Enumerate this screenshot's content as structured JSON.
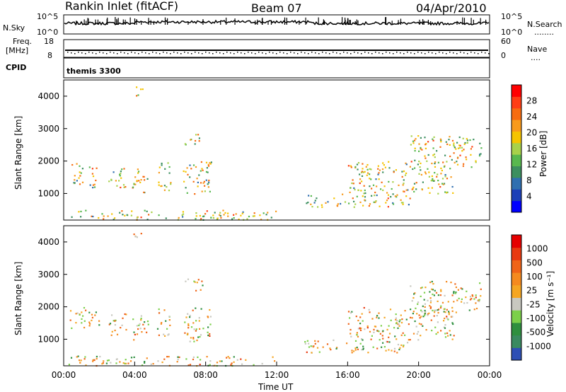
{
  "header": {
    "station": "Rankin Inlet (fitACF)",
    "beam": "Beam 07",
    "date": "04/Apr/2010"
  },
  "nsky_panel": {
    "left_label": "N.Sky",
    "right_label": "N.Search",
    "right_dots": "........",
    "left_ticks": [
      "10^5",
      "10^0"
    ],
    "right_ticks": [
      "10^5",
      "10^0"
    ]
  },
  "freq_panel": {
    "label_top": "Freq.",
    "label_unit": "[MHz]",
    "left_ticks": [
      "18",
      "8"
    ],
    "right_label": "Nave",
    "right_dots": "....",
    "right_ticks": [
      "60",
      "0"
    ]
  },
  "cpid_panel": {
    "label": "CPID",
    "program": "themis 3300"
  },
  "chart_data": [
    {
      "type": "heatmap",
      "name": "power",
      "ylabel": "Slant Range [km]",
      "ylim": [
        180,
        4500
      ],
      "yticks": [
        1000,
        2000,
        3000,
        4000
      ],
      "xlim_hours": [
        0,
        24
      ],
      "colorbar": {
        "label": "Power [dB]",
        "ticks": [
          "28",
          "24",
          "20",
          "16",
          "12",
          "8",
          "4"
        ],
        "colors": [
          "#0000ff",
          "#1c3fb8",
          "#2f6fb0",
          "#3c8f5f",
          "#58b84e",
          "#a8d14a",
          "#f5c400",
          "#f89a1b",
          "#f76c10",
          "#ff3d14",
          "#ff0000"
        ]
      }
    },
    {
      "type": "heatmap",
      "name": "velocity",
      "ylabel": "Slant Range [km]",
      "ylim": [
        180,
        4500
      ],
      "yticks": [
        1000,
        2000,
        3000,
        4000
      ],
      "xlim_hours": [
        0,
        24
      ],
      "xticks": [
        "00:00",
        "04:00",
        "08:00",
        "12:00",
        "16:00",
        "20:00",
        "00:00"
      ],
      "xlabel": "Time UT",
      "colorbar": {
        "label": "Velocity [m s⁻¹]",
        "ticks": [
          "1000",
          "500",
          "100",
          "25",
          "-25",
          "-100",
          "-500",
          "-1000"
        ],
        "colors": [
          "#2e4fb5",
          "#3a8a60",
          "#2f8f3f",
          "#7cd04a",
          "#c8c8c0",
          "#f5a623",
          "#f58a1f",
          "#f06418",
          "#e83a10",
          "#e60000"
        ]
      }
    }
  ]
}
